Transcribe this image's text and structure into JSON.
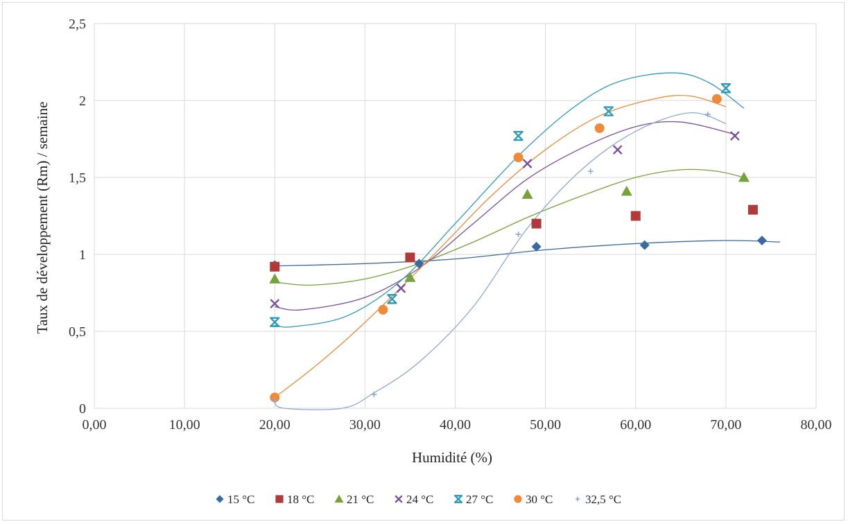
{
  "chart_data": {
    "type": "scatter",
    "title": "",
    "xlabel": "Humidité (%)",
    "ylabel": "Taux de développement  (Rm) / semaine",
    "xlim": [
      0,
      80
    ],
    "ylim": [
      0,
      2.5
    ],
    "x_ticks": [
      0,
      10,
      20,
      30,
      40,
      50,
      60,
      70,
      80
    ],
    "x_tick_labels": [
      "0,00",
      "10,00",
      "20,00",
      "30,00",
      "40,00",
      "50,00",
      "60,00",
      "70,00",
      "80,00"
    ],
    "y_ticks": [
      0,
      0.5,
      1,
      1.5,
      2,
      2.5
    ],
    "y_tick_labels": [
      "0",
      "0,5",
      "1",
      "1,5",
      "2",
      "2,5"
    ],
    "grid": "vertical and horizontal major gridlines",
    "legend_position": "bottom",
    "series": [
      {
        "name": "15 °C",
        "color": "#3b6aa0",
        "marker": "diamond",
        "x": [
          20,
          36,
          49,
          61,
          74
        ],
        "y": [
          0.93,
          0.94,
          1.05,
          1.06,
          1.09
        ],
        "trend": {
          "x_range": [
            20,
            76
          ],
          "points": [
            [
              20,
              0.925
            ],
            [
              30,
              0.94
            ],
            [
              40,
              0.97
            ],
            [
              50,
              1.03
            ],
            [
              60,
              1.07
            ],
            [
              70,
              1.09
            ],
            [
              76,
              1.08
            ]
          ]
        }
      },
      {
        "name": "18 °C",
        "color": "#b03a3a",
        "marker": "square",
        "x": [
          20,
          35,
          49,
          60,
          73
        ],
        "y": [
          0.92,
          0.98,
          1.2,
          1.25,
          1.29
        ],
        "trend": null
      },
      {
        "name": "21 °C",
        "color": "#76a23a",
        "marker": "triangle",
        "x": [
          20,
          35,
          48,
          59,
          72
        ],
        "y": [
          0.84,
          0.85,
          1.39,
          1.41,
          1.5
        ],
        "trend": {
          "x_range": [
            20,
            72
          ],
          "points": [
            [
              20,
              0.82
            ],
            [
              24,
              0.8
            ],
            [
              30,
              0.84
            ],
            [
              36,
              0.94
            ],
            [
              42,
              1.08
            ],
            [
              48,
              1.24
            ],
            [
              54,
              1.38
            ],
            [
              60,
              1.5
            ],
            [
              65,
              1.55
            ],
            [
              69,
              1.54
            ],
            [
              72,
              1.5
            ]
          ]
        }
      },
      {
        "name": "24 °C",
        "color": "#7a4f9a",
        "marker": "x",
        "x": [
          20,
          34,
          48,
          58,
          71
        ],
        "y": [
          0.68,
          0.78,
          1.59,
          1.68,
          1.77
        ],
        "trend": {
          "x_range": [
            20,
            71
          ],
          "points": [
            [
              20,
              0.66
            ],
            [
              23,
              0.64
            ],
            [
              30,
              0.72
            ],
            [
              36,
              0.91
            ],
            [
              42,
              1.2
            ],
            [
              48,
              1.49
            ],
            [
              54,
              1.69
            ],
            [
              60,
              1.83
            ],
            [
              65,
              1.86
            ],
            [
              71,
              1.78
            ]
          ]
        }
      },
      {
        "name": "27 °C",
        "color": "#2f9bb8",
        "marker": "star",
        "x": [
          20,
          33,
          47,
          57,
          70
        ],
        "y": [
          0.56,
          0.71,
          1.77,
          1.93,
          2.08
        ],
        "trend": {
          "x_range": [
            20,
            72
          ],
          "points": [
            [
              20,
              0.54
            ],
            [
              22,
              0.53
            ],
            [
              28,
              0.6
            ],
            [
              34,
              0.83
            ],
            [
              40,
              1.2
            ],
            [
              47,
              1.64
            ],
            [
              53,
              1.95
            ],
            [
              58,
              2.12
            ],
            [
              64,
              2.18
            ],
            [
              68,
              2.12
            ],
            [
              72,
              1.95
            ]
          ]
        }
      },
      {
        "name": "30 °C",
        "color": "#ee8a3a",
        "marker": "circle",
        "x": [
          20,
          32,
          47,
          56,
          69
        ],
        "y": [
          0.07,
          0.64,
          1.63,
          1.82,
          2.01
        ],
        "trend": {
          "x_range": [
            20,
            70
          ],
          "points": [
            [
              20,
              0.07
            ],
            [
              24,
              0.25
            ],
            [
              28,
              0.45
            ],
            [
              32,
              0.67
            ],
            [
              38,
              1.02
            ],
            [
              44,
              1.38
            ],
            [
              50,
              1.68
            ],
            [
              56,
              1.9
            ],
            [
              62,
              2.01
            ],
            [
              66,
              2.03
            ],
            [
              70,
              1.96
            ]
          ]
        }
      },
      {
        "name": "32,5 °C",
        "color": "#8fa8cc",
        "marker": "plus",
        "x": [
          20,
          31,
          47,
          55,
          68
        ],
        "y": [
          0.05,
          0.09,
          1.13,
          1.54,
          1.91
        ],
        "trend": {
          "x_range": [
            20,
            70
          ],
          "points": [
            [
              20,
              0.05
            ],
            [
              21,
              0.0
            ],
            [
              27.5,
              0.0
            ],
            [
              31,
              0.1
            ],
            [
              36,
              0.3
            ],
            [
              42,
              0.66
            ],
            [
              48,
              1.17
            ],
            [
              54,
              1.55
            ],
            [
              60,
              1.8
            ],
            [
              66,
              1.92
            ],
            [
              70,
              1.85
            ]
          ]
        }
      }
    ]
  }
}
